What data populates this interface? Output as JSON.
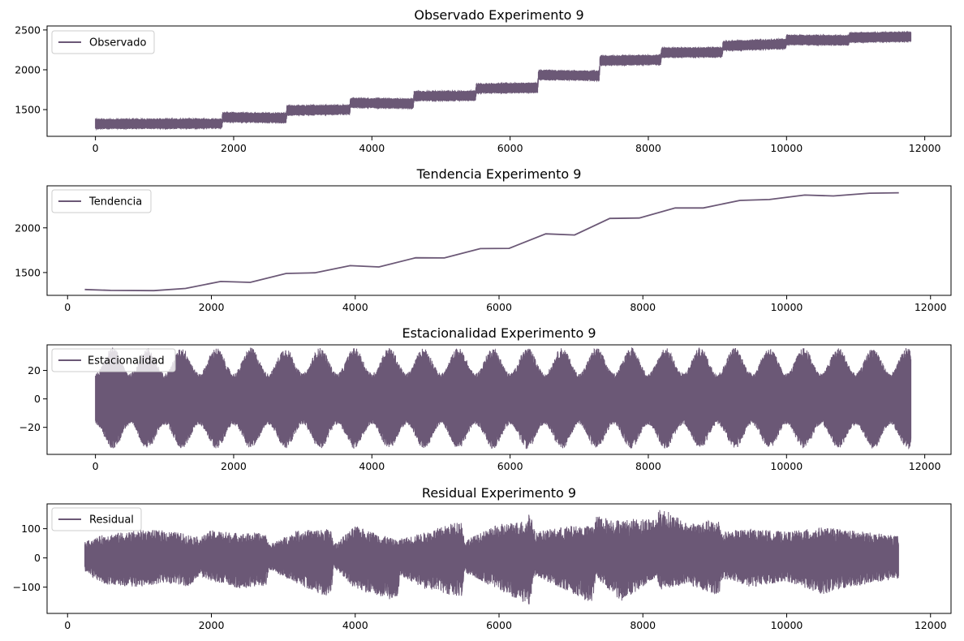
{
  "figure": {
    "background": "#ffffff",
    "series_color": "#6b5876"
  },
  "chart_data": [
    {
      "type": "line",
      "title": "Observado Experimento 9",
      "legend": {
        "label": "Observado",
        "placement": "upper-left"
      },
      "xlim": [
        -700,
        12380
      ],
      "ylim": [
        1165,
        2550
      ],
      "xticks": [
        0,
        2000,
        4000,
        6000,
        8000,
        10000,
        12000
      ],
      "yticks": [
        1500,
        2000,
        2500
      ],
      "dense": true,
      "amplitude": 65,
      "x_extent": [
        0,
        11800
      ],
      "level_points": [
        [
          0,
          1320
        ],
        [
          1830,
          1325
        ],
        [
          1840,
          1405
        ],
        [
          2760,
          1395
        ],
        [
          2770,
          1490
        ],
        [
          3680,
          1500
        ],
        [
          3690,
          1585
        ],
        [
          4600,
          1575
        ],
        [
          4610,
          1670
        ],
        [
          5500,
          1675
        ],
        [
          5510,
          1765
        ],
        [
          6400,
          1775
        ],
        [
          6410,
          1935
        ],
        [
          7290,
          1925
        ],
        [
          7300,
          2115
        ],
        [
          8180,
          2125
        ],
        [
          8190,
          2215
        ],
        [
          9070,
          2220
        ],
        [
          9080,
          2300
        ],
        [
          9990,
          2325
        ],
        [
          10000,
          2375
        ],
        [
          10900,
          2370
        ],
        [
          10910,
          2405
        ],
        [
          11800,
          2415
        ]
      ]
    },
    {
      "type": "line",
      "title": "Tendencia Experimento 9",
      "legend": {
        "label": "Tendencia",
        "placement": "upper-left"
      },
      "xlim": [
        -285,
        12285
      ],
      "ylim": [
        1245,
        2470
      ],
      "xticks": [
        0,
        2000,
        4000,
        6000,
        8000,
        10000,
        12000
      ],
      "yticks": [
        1500,
        2000
      ],
      "dense": false,
      "points": [
        [
          240,
          1310
        ],
        [
          600,
          1300
        ],
        [
          1200,
          1298
        ],
        [
          1640,
          1322
        ],
        [
          2130,
          1400
        ],
        [
          2540,
          1390
        ],
        [
          3040,
          1490
        ],
        [
          3440,
          1497
        ],
        [
          3930,
          1577
        ],
        [
          4330,
          1563
        ],
        [
          4840,
          1665
        ],
        [
          5240,
          1663
        ],
        [
          5740,
          1768
        ],
        [
          6140,
          1770
        ],
        [
          6650,
          1933
        ],
        [
          7050,
          1920
        ],
        [
          7540,
          2105
        ],
        [
          7950,
          2110
        ],
        [
          8450,
          2222
        ],
        [
          8840,
          2222
        ],
        [
          9350,
          2307
        ],
        [
          9760,
          2317
        ],
        [
          10250,
          2367
        ],
        [
          10650,
          2357
        ],
        [
          11150,
          2387
        ],
        [
          11560,
          2392
        ]
      ]
    },
    {
      "type": "line",
      "title": "Estacionalidad Experimento 9",
      "legend": {
        "label": "Estacionalidad",
        "placement": "upper-left"
      },
      "xlim": [
        -700,
        12380
      ],
      "ylim": [
        -39,
        38
      ],
      "xticks": [
        0,
        2000,
        4000,
        6000,
        8000,
        10000,
        12000
      ],
      "yticks": [
        -20,
        0,
        20
      ],
      "dense": true,
      "x_extent": [
        0,
        11800
      ],
      "period": 500,
      "amplitude_range": [
        [
          -18,
          18
        ],
        [
          -35,
          36
        ]
      ]
    },
    {
      "type": "line",
      "title": "Residual Experimento 9",
      "legend": {
        "label": "Residual",
        "placement": "upper-left"
      },
      "xlim": [
        -285,
        12285
      ],
      "ylim": [
        -190,
        185
      ],
      "xticks": [
        0,
        2000,
        4000,
        6000,
        8000,
        10000,
        12000
      ],
      "yticks": [
        -100,
        0,
        100
      ],
      "dense": true,
      "x_extent": [
        240,
        11560
      ],
      "envelope_points": [
        [
          240,
          -50,
          55
        ],
        [
          500,
          -90,
          80
        ],
        [
          1000,
          -100,
          95
        ],
        [
          1350,
          -85,
          95
        ],
        [
          1700,
          -100,
          80
        ],
        [
          1840,
          -60,
          70
        ],
        [
          2000,
          -80,
          95
        ],
        [
          2400,
          -105,
          85
        ],
        [
          2760,
          -95,
          85
        ],
        [
          2800,
          -40,
          45
        ],
        [
          3200,
          -90,
          95
        ],
        [
          3660,
          -140,
          100
        ],
        [
          3700,
          -30,
          45
        ],
        [
          4000,
          -110,
          110
        ],
        [
          4590,
          -150,
          60
        ],
        [
          4620,
          -60,
          65
        ],
        [
          5000,
          -110,
          90
        ],
        [
          5480,
          -135,
          130
        ],
        [
          5520,
          -50,
          60
        ],
        [
          6000,
          -110,
          115
        ],
        [
          6380,
          -160,
          130
        ],
        [
          6420,
          -175,
          165
        ],
        [
          6500,
          -60,
          90
        ],
        [
          7000,
          -120,
          110
        ],
        [
          7300,
          -160,
          110
        ],
        [
          7340,
          -70,
          145
        ],
        [
          7700,
          -150,
          130
        ],
        [
          8180,
          -70,
          140
        ],
        [
          8250,
          -110,
          175
        ],
        [
          8600,
          -90,
          120
        ],
        [
          9060,
          -130,
          130
        ],
        [
          9100,
          -70,
          90
        ],
        [
          9500,
          -100,
          100
        ],
        [
          10000,
          -80,
          90
        ],
        [
          10500,
          -125,
          105
        ],
        [
          10900,
          -100,
          95
        ],
        [
          11560,
          -70,
          75
        ]
      ]
    }
  ]
}
